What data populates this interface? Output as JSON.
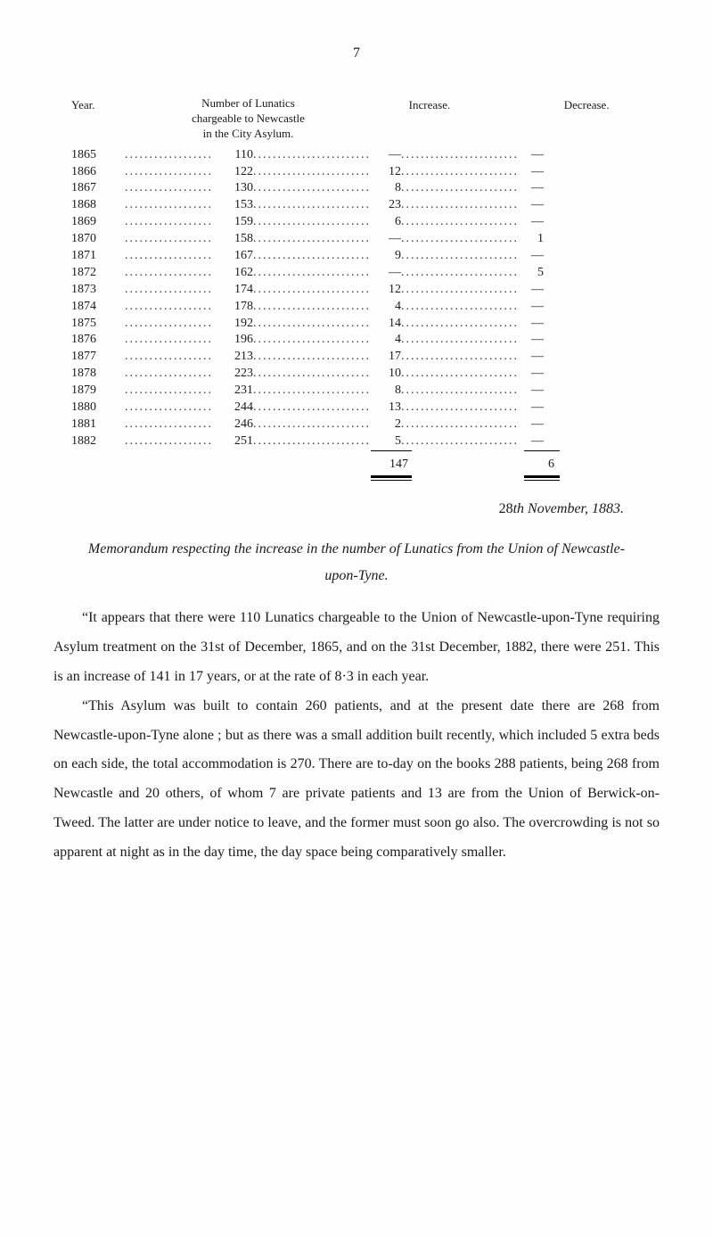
{
  "page_number": "7",
  "table": {
    "headers": {
      "year": "Year.",
      "chargeable_line1": "Number of Lunatics",
      "chargeable_line2": "chargeable to Newcastle",
      "chargeable_line3": "in the City Asylum.",
      "increase": "Increase.",
      "decrease": "Decrease."
    },
    "rows": [
      {
        "year": "1865",
        "charge": "110",
        "inc": "—",
        "dec": "—"
      },
      {
        "year": "1866",
        "charge": "122",
        "inc": "12",
        "dec": "—"
      },
      {
        "year": "1867",
        "charge": "130",
        "inc": "8",
        "dec": "—"
      },
      {
        "year": "1868",
        "charge": "153",
        "inc": "23",
        "dec": "—"
      },
      {
        "year": "1869",
        "charge": "159",
        "inc": "6",
        "dec": "—"
      },
      {
        "year": "1870",
        "charge": "158",
        "inc": "—",
        "dec": "1"
      },
      {
        "year": "1871",
        "charge": "167",
        "inc": "9",
        "dec": "—"
      },
      {
        "year": "1872",
        "charge": "162",
        "inc": "—",
        "dec": "5"
      },
      {
        "year": "1873",
        "charge": "174",
        "inc": "12",
        "dec": "—"
      },
      {
        "year": "1874",
        "charge": "178",
        "inc": "4",
        "dec": "—"
      },
      {
        "year": "1875",
        "charge": "192",
        "inc": "14",
        "dec": "—"
      },
      {
        "year": "1876",
        "charge": "196",
        "inc": "4",
        "dec": "—"
      },
      {
        "year": "1877",
        "charge": "213",
        "inc": "17",
        "dec": "—"
      },
      {
        "year": "1878",
        "charge": "223",
        "inc": "10",
        "dec": "—"
      },
      {
        "year": "1879",
        "charge": "231",
        "inc": "8",
        "dec": "—"
      },
      {
        "year": "1880",
        "charge": "244",
        "inc": "13",
        "dec": "—"
      },
      {
        "year": "1881",
        "charge": "246",
        "inc": "2",
        "dec": "—"
      },
      {
        "year": "1882",
        "charge": "251",
        "inc": "5",
        "dec": "—"
      }
    ],
    "totals": {
      "inc": "147",
      "dec": "6"
    }
  },
  "date_line_prefix": "28",
  "date_line_ord": "th",
  "date_line_rest": " November, 1883.",
  "memo_heading": "Memorandum respecting the increase in the number of Lunatics from the Union of Newcastle-upon-Tyne.",
  "para1": "“It appears that there were 110 Lunatics chargeable to the Union of Newcastle-upon-Tyne requiring Asylum treatment on the 31st of December, 1865, and on the 31st December, 1882, there were 251. This is an increase of 141 in 17 years, or at the rate of 8·3 in each year.",
  "para2": "“This Asylum was built to contain 260 patients, and at the present date there are 268 from Newcastle-upon-Tyne alone ; but as there was a small addition built recently, which included 5 extra beds on each side, the total accommodation is 270. There are to-day on the books 288 patients, being 268 from Newcastle and 20 others, of whom 7 are private patients and 13 are from the Union of Berwick-on-Tweed. The latter are under notice to leave, and the former must soon go also. The overcrowding is not so apparent at night as in the day time, the day space being comparatively smaller.",
  "colors": {
    "text": "#1a1a1a",
    "background": "#fefefe"
  }
}
